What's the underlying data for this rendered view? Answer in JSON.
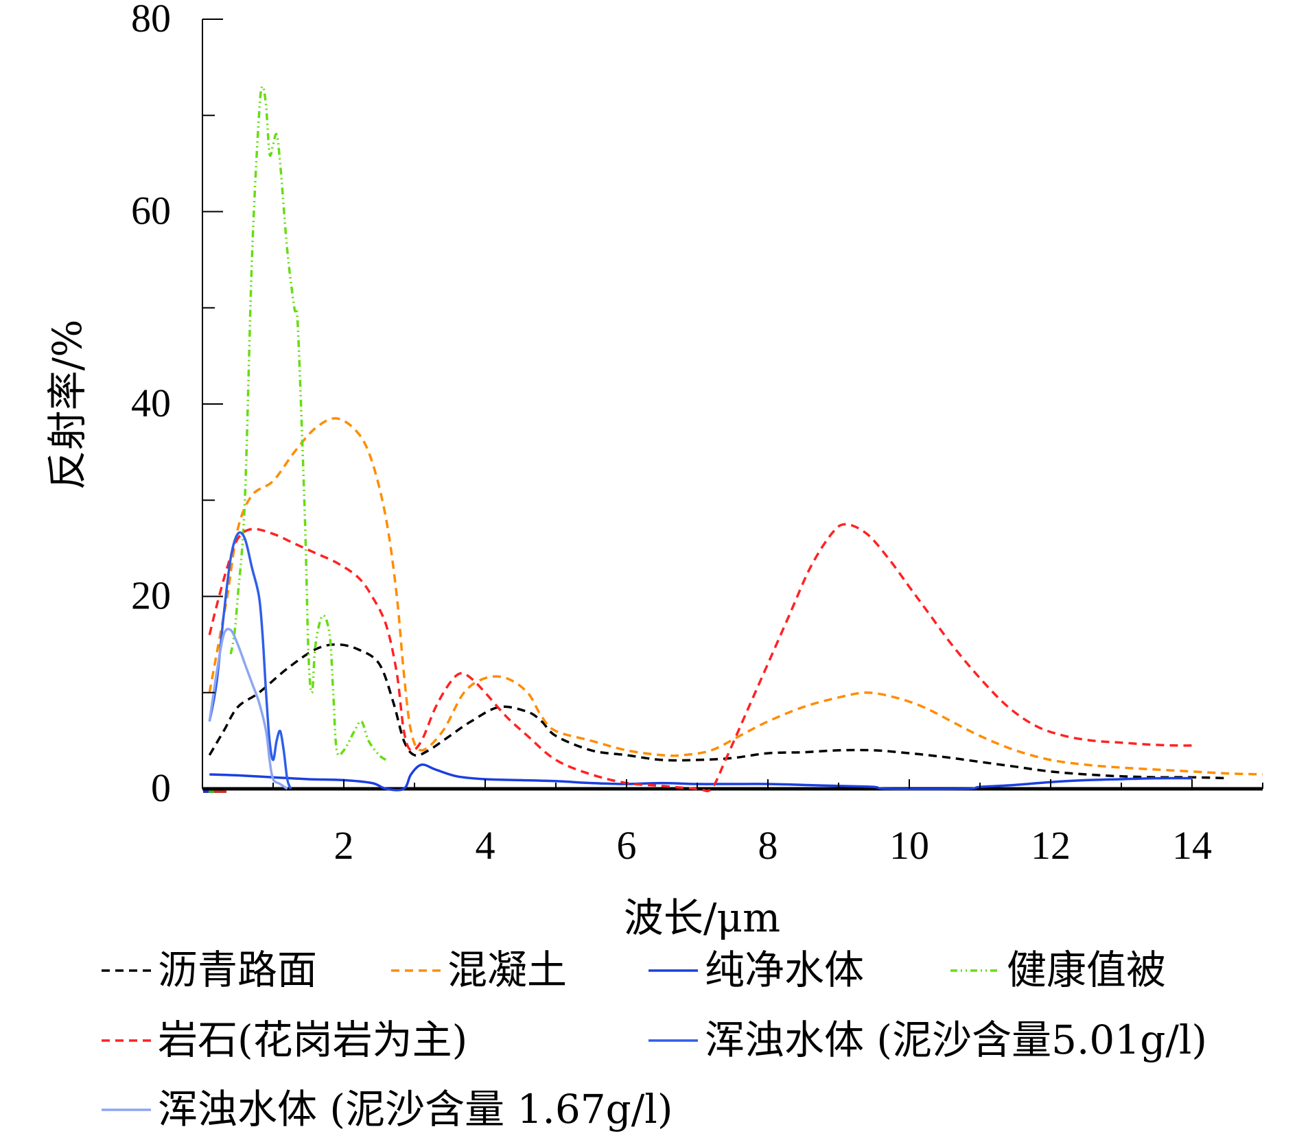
{
  "chart_data": {
    "type": "line",
    "xlabel": "波长/μm",
    "ylabel": "反射率/%",
    "xlim": [
      0.0,
      15.0
    ],
    "ylim": [
      0,
      80
    ],
    "x_ticks": [
      "2",
      "4",
      "6",
      "8",
      "10",
      "12",
      "14"
    ],
    "y_ticks": [
      "0",
      "20",
      "40",
      "60",
      "80"
    ],
    "grid": false,
    "legend_position": "bottom",
    "series": [
      {
        "name": "沥青路面",
        "color": "#000000",
        "dash": "dashed",
        "points": [
          [
            0.1,
            3.5
          ],
          [
            0.3,
            6
          ],
          [
            0.5,
            8.5
          ],
          [
            0.8,
            10
          ],
          [
            1.2,
            12.5
          ],
          [
            1.6,
            14.5
          ],
          [
            1.9,
            15
          ],
          [
            2.2,
            14.5
          ],
          [
            2.5,
            13
          ],
          [
            2.7,
            9
          ],
          [
            2.85,
            5
          ],
          [
            3.0,
            3.5
          ],
          [
            3.2,
            4
          ],
          [
            3.5,
            5.5
          ],
          [
            3.8,
            7
          ],
          [
            4.2,
            8.5
          ],
          [
            4.6,
            8
          ],
          [
            4.8,
            7
          ],
          [
            5.0,
            5.5
          ],
          [
            5.5,
            4
          ],
          [
            6.0,
            3.5
          ],
          [
            6.5,
            3
          ],
          [
            7.0,
            3
          ],
          [
            7.5,
            3.2
          ],
          [
            8.0,
            3.7
          ],
          [
            8.5,
            3.8
          ],
          [
            9.0,
            4
          ],
          [
            9.5,
            4
          ],
          [
            10.0,
            3.7
          ],
          [
            10.5,
            3.3
          ],
          [
            11.0,
            2.8
          ],
          [
            11.5,
            2.3
          ],
          [
            12.0,
            1.8
          ],
          [
            12.5,
            1.5
          ],
          [
            13.0,
            1.3
          ],
          [
            13.5,
            1.2
          ],
          [
            14.0,
            1.2
          ],
          [
            14.5,
            1.1
          ]
        ]
      },
      {
        "name": "混凝土",
        "color": "#ff8c00",
        "dash": "dashed",
        "points": [
          [
            0.1,
            10
          ],
          [
            0.2,
            14
          ],
          [
            0.35,
            20
          ],
          [
            0.5,
            27
          ],
          [
            0.7,
            30.5
          ],
          [
            1.0,
            32
          ],
          [
            1.3,
            35
          ],
          [
            1.6,
            37.5
          ],
          [
            1.9,
            38.5
          ],
          [
            2.2,
            37
          ],
          [
            2.4,
            34
          ],
          [
            2.6,
            28
          ],
          [
            2.75,
            20
          ],
          [
            2.85,
            12
          ],
          [
            2.95,
            6
          ],
          [
            3.1,
            4
          ],
          [
            3.4,
            6
          ],
          [
            3.7,
            10
          ],
          [
            4.0,
            11.5
          ],
          [
            4.3,
            11.5
          ],
          [
            4.6,
            10
          ],
          [
            4.8,
            7.5
          ],
          [
            5.0,
            6
          ],
          [
            5.5,
            5
          ],
          [
            6.0,
            4
          ],
          [
            6.5,
            3.5
          ],
          [
            6.8,
            3.5
          ],
          [
            7.2,
            4
          ],
          [
            7.6,
            5.5
          ],
          [
            8.0,
            7
          ],
          [
            8.5,
            8.5
          ],
          [
            9.0,
            9.5
          ],
          [
            9.4,
            10
          ],
          [
            9.8,
            9.5
          ],
          [
            10.2,
            8.5
          ],
          [
            10.6,
            7
          ],
          [
            11.0,
            5.5
          ],
          [
            11.5,
            4
          ],
          [
            12.0,
            3
          ],
          [
            12.5,
            2.5
          ],
          [
            13.0,
            2.2
          ],
          [
            13.5,
            2
          ],
          [
            14.0,
            1.8
          ],
          [
            14.5,
            1.6
          ],
          [
            15.0,
            1.5
          ]
        ]
      },
      {
        "name": "纯净水体",
        "color": "#1a3fe0",
        "dash": "solid",
        "points": [
          [
            0.1,
            1.5
          ],
          [
            0.5,
            1.4
          ],
          [
            1.0,
            1.2
          ],
          [
            1.5,
            1.0
          ],
          [
            2.0,
            0.9
          ],
          [
            2.4,
            0.6
          ],
          [
            2.6,
            0.0
          ],
          [
            2.85,
            0.0
          ],
          [
            2.95,
            1.5
          ],
          [
            3.1,
            2.5
          ],
          [
            3.3,
            2
          ],
          [
            3.6,
            1.3
          ],
          [
            4.0,
            1.0
          ],
          [
            4.5,
            0.9
          ],
          [
            5.0,
            0.8
          ],
          [
            5.5,
            0.6
          ],
          [
            6.0,
            0.5
          ],
          [
            6.5,
            0.6
          ],
          [
            7.0,
            0.5
          ],
          [
            7.5,
            0.5
          ],
          [
            8.0,
            0.5
          ],
          [
            8.5,
            0.4
          ],
          [
            9.0,
            0.3
          ],
          [
            9.5,
            0.2
          ],
          [
            9.7,
            0.0
          ],
          [
            10.8,
            0.0
          ],
          [
            11.0,
            0.2
          ],
          [
            11.5,
            0.4
          ],
          [
            12.0,
            0.7
          ],
          [
            12.5,
            0.9
          ],
          [
            13.0,
            1.0
          ],
          [
            13.5,
            1.1
          ],
          [
            14.0,
            1.1
          ]
        ]
      },
      {
        "name": "健康值被",
        "color": "#66dd11",
        "dash": "dashdotdot",
        "points": [
          [
            0.4,
            14
          ],
          [
            0.45,
            16
          ],
          [
            0.5,
            20
          ],
          [
            0.6,
            30
          ],
          [
            0.7,
            55
          ],
          [
            0.8,
            70
          ],
          [
            0.85,
            73
          ],
          [
            0.9,
            71
          ],
          [
            0.95,
            66
          ],
          [
            1.0,
            67
          ],
          [
            1.05,
            68
          ],
          [
            1.1,
            65
          ],
          [
            1.2,
            56
          ],
          [
            1.3,
            50
          ],
          [
            1.35,
            48
          ],
          [
            1.45,
            28
          ],
          [
            1.5,
            14
          ],
          [
            1.55,
            10
          ],
          [
            1.6,
            15
          ],
          [
            1.7,
            18
          ],
          [
            1.8,
            16
          ],
          [
            1.85,
            10
          ],
          [
            1.9,
            4
          ],
          [
            2.0,
            4
          ],
          [
            2.15,
            6
          ],
          [
            2.25,
            7
          ],
          [
            2.35,
            5
          ],
          [
            2.5,
            3.5
          ],
          [
            2.6,
            3
          ]
        ]
      },
      {
        "name": "岩石(花岗岩为主)",
        "color": "#ff2222",
        "dash": "dashed",
        "points": [
          [
            0.1,
            16
          ],
          [
            0.2,
            19
          ],
          [
            0.35,
            23
          ],
          [
            0.5,
            26
          ],
          [
            0.7,
            27
          ],
          [
            1.0,
            26.5
          ],
          [
            1.3,
            25.5
          ],
          [
            1.6,
            24.5
          ],
          [
            1.9,
            23.5
          ],
          [
            2.2,
            22
          ],
          [
            2.4,
            20
          ],
          [
            2.6,
            17
          ],
          [
            2.75,
            12
          ],
          [
            2.85,
            6
          ],
          [
            2.95,
            4
          ],
          [
            3.1,
            5
          ],
          [
            3.3,
            8.5
          ],
          [
            3.5,
            11
          ],
          [
            3.65,
            12
          ],
          [
            3.8,
            11.5
          ],
          [
            4.0,
            10
          ],
          [
            4.3,
            7.5
          ],
          [
            4.6,
            5.5
          ],
          [
            5.0,
            3
          ],
          [
            5.5,
            1.5
          ],
          [
            6.0,
            0.6
          ],
          [
            6.5,
            0.3
          ],
          [
            7.0,
            0.0
          ],
          [
            7.2,
            0.0
          ],
          [
            7.4,
            3
          ],
          [
            7.7,
            8
          ],
          [
            8.0,
            13
          ],
          [
            8.3,
            18
          ],
          [
            8.6,
            23
          ],
          [
            8.9,
            26.5
          ],
          [
            9.1,
            27.5
          ],
          [
            9.4,
            26.5
          ],
          [
            9.7,
            24
          ],
          [
            10.0,
            21
          ],
          [
            10.3,
            18
          ],
          [
            10.6,
            15
          ],
          [
            11.0,
            11.5
          ],
          [
            11.4,
            8.5
          ],
          [
            11.8,
            6.5
          ],
          [
            12.2,
            5.5
          ],
          [
            12.6,
            5
          ],
          [
            13.0,
            4.8
          ],
          [
            13.4,
            4.6
          ],
          [
            13.8,
            4.5
          ],
          [
            14.0,
            4.5
          ]
        ]
      },
      {
        "name": "浑浊水体 (泥沙含量5.01g/l)",
        "color": "#2f5ee8",
        "dash": "solid",
        "points": [
          [
            0.1,
            7
          ],
          [
            0.2,
            11
          ],
          [
            0.3,
            18
          ],
          [
            0.4,
            24
          ],
          [
            0.5,
            26.5
          ],
          [
            0.6,
            26
          ],
          [
            0.7,
            23
          ],
          [
            0.8,
            20
          ],
          [
            0.85,
            16
          ],
          [
            0.9,
            10
          ],
          [
            0.95,
            5
          ],
          [
            1.0,
            3
          ],
          [
            1.05,
            5
          ],
          [
            1.1,
            6
          ],
          [
            1.15,
            4
          ],
          [
            1.2,
            1
          ],
          [
            1.25,
            0
          ]
        ]
      },
      {
        "name": "浑浊水体 (泥沙含量 1.67g/l)",
        "color": "#8da6f2",
        "dash": "solid",
        "points": [
          [
            0.1,
            7
          ],
          [
            0.2,
            12
          ],
          [
            0.3,
            16
          ],
          [
            0.4,
            16.5
          ],
          [
            0.5,
            15
          ],
          [
            0.6,
            13
          ],
          [
            0.7,
            11
          ],
          [
            0.8,
            9
          ],
          [
            0.9,
            6
          ],
          [
            0.95,
            3
          ],
          [
            1.0,
            1
          ],
          [
            1.1,
            0.5
          ],
          [
            1.2,
            0
          ]
        ]
      }
    ]
  }
}
